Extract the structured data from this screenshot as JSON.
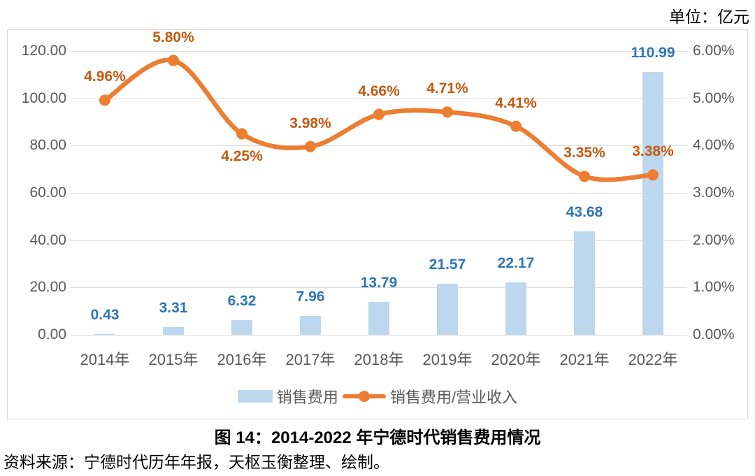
{
  "unit_label": "单位：亿元",
  "figure_title": "图 14：2014-2022 年宁德时代销售费用情况",
  "source_note": "资料来源：宁德时代历年年报，天枢玉衡整理、绘制。",
  "colors": {
    "bar_fill": "#BDD7EE",
    "bar_label": "#2E75B6",
    "line": "#ED7D31",
    "line_label": "#C55A11",
    "axis_text": "#595959",
    "gridline": "#D9D9D9"
  },
  "chart_data": {
    "type": "bar+line",
    "title": "",
    "categories": [
      "2014年",
      "2015年",
      "2016年",
      "2017年",
      "2018年",
      "2019年",
      "2020年",
      "2021年",
      "2022年"
    ],
    "series": [
      {
        "name": "销售费用",
        "type": "bar",
        "axis": "left",
        "values": [
          0.43,
          3.31,
          6.32,
          7.96,
          13.79,
          21.57,
          22.17,
          43.68,
          110.99
        ],
        "data_labels": [
          "0.43",
          "3.31",
          "6.32",
          "7.96",
          "13.79",
          "21.57",
          "22.17",
          "43.68",
          "110.99"
        ]
      },
      {
        "name": "销售费用/营业收入",
        "type": "line",
        "axis": "right",
        "values": [
          4.96,
          5.8,
          4.25,
          3.98,
          4.66,
          4.71,
          4.41,
          3.35,
          3.38
        ],
        "data_labels": [
          "4.96%",
          "5.80%",
          "4.25%",
          "3.98%",
          "4.66%",
          "4.71%",
          "4.41%",
          "3.35%",
          "3.38%"
        ],
        "label_positions": [
          "above",
          "above",
          "below",
          "above",
          "above",
          "above",
          "above",
          "above",
          "above"
        ]
      }
    ],
    "left_axis": {
      "min": 0,
      "max": 120,
      "step": 20,
      "tick_labels": [
        "0.00",
        "20.00",
        "40.00",
        "60.00",
        "80.00",
        "100.00",
        "120.00"
      ]
    },
    "right_axis": {
      "min": 0,
      "max": 6,
      "step": 1,
      "tick_labels": [
        "0.00%",
        "1.00%",
        "2.00%",
        "3.00%",
        "4.00%",
        "5.00%",
        "6.00%"
      ]
    },
    "grid": true,
    "legend_position": "bottom"
  }
}
